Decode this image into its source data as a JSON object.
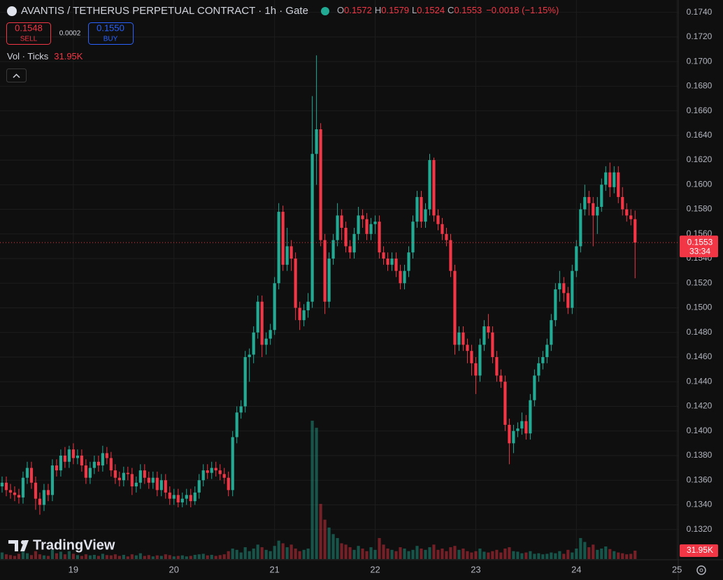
{
  "chart_data": {
    "type": "candlestick",
    "title": "AVANTIS / TETHERUS PERPETUAL CONTRACT · 1h · Gate",
    "legend_letters": [
      "O",
      "H",
      "L",
      "C"
    ],
    "change_label": "−0.0018 (−1.15%)",
    "sell_price": 0.1548,
    "sell_label": "SELL",
    "spread": 0.0002,
    "buy_price": {
      "value": 0.155,
      "label": "0.1550"
    },
    "buy_label": "BUY",
    "volume_indicator": "Vol · Ticks",
    "volume_label": "31.95K",
    "countdown": "33:34",
    "watermark": "TradingView",
    "up_color": "#22ab94",
    "down_color": "#f23645",
    "grid": true,
    "xlim": [
      6.5,
      168.3
    ],
    "xticks": [
      {
        "value": 24,
        "label": "19"
      },
      {
        "value": 48,
        "label": "20"
      },
      {
        "value": 72,
        "label": "21"
      },
      {
        "value": 96,
        "label": "22"
      },
      {
        "value": 120,
        "label": "23"
      },
      {
        "value": 144,
        "label": "24"
      },
      {
        "value": 168,
        "label": "25"
      }
    ],
    "ylim": [
      0.1296,
      0.175
    ],
    "yticks": [
      {
        "value": 0.132,
        "label": "0.1320"
      },
      {
        "value": 0.134,
        "label": "0.1340"
      },
      {
        "value": 0.136,
        "label": "0.1360"
      },
      {
        "value": 0.138,
        "label": "0.1380"
      },
      {
        "value": 0.14,
        "label": "0.1400"
      },
      {
        "value": 0.142,
        "label": "0.1420"
      },
      {
        "value": 0.144,
        "label": "0.1440"
      },
      {
        "value": 0.146,
        "label": "0.1460"
      },
      {
        "value": 0.148,
        "label": "0.1480"
      },
      {
        "value": 0.15,
        "label": "0.1500"
      },
      {
        "value": 0.152,
        "label": "0.1520"
      },
      {
        "value": 0.154,
        "label": "0.1540"
      },
      {
        "value": 0.156,
        "label": "0.1560"
      },
      {
        "value": 0.158,
        "label": "0.1580"
      },
      {
        "value": 0.16,
        "label": "0.1600"
      },
      {
        "value": 0.162,
        "label": "0.1620"
      },
      {
        "value": 0.164,
        "label": "0.1640"
      },
      {
        "value": 0.166,
        "label": "0.1660"
      },
      {
        "value": 0.168,
        "label": "0.1680"
      },
      {
        "value": 0.17,
        "label": "0.1700"
      },
      {
        "value": 0.172,
        "label": "0.1720"
      },
      {
        "value": 0.174,
        "label": "0.1740"
      }
    ],
    "vlim": [
      0,
      2130000
    ],
    "x": [
      7,
      8,
      9,
      10,
      11,
      12,
      13,
      14,
      15,
      16,
      17,
      18,
      19,
      20,
      21,
      22,
      23,
      24,
      25,
      26,
      27,
      28,
      29,
      30,
      31,
      32,
      33,
      34,
      35,
      36,
      37,
      38,
      39,
      40,
      41,
      42,
      43,
      44,
      45,
      46,
      47,
      48,
      49,
      50,
      51,
      52,
      53,
      54,
      55,
      56,
      57,
      58,
      59,
      60,
      61,
      62,
      63,
      64,
      65,
      66,
      67,
      68,
      69,
      70,
      71,
      72,
      73,
      74,
      75,
      76,
      77,
      78,
      79,
      80,
      81,
      82,
      83,
      84,
      85,
      86,
      87,
      88,
      89,
      90,
      91,
      92,
      93,
      94,
      95,
      96,
      97,
      98,
      99,
      100,
      101,
      102,
      103,
      104,
      105,
      106,
      107,
      108,
      109,
      110,
      111,
      112,
      113,
      114,
      115,
      116,
      117,
      118,
      119,
      120,
      121,
      122,
      123,
      124,
      125,
      126,
      127,
      128,
      129,
      130,
      131,
      132,
      133,
      134,
      135,
      136,
      137,
      138,
      139,
      140,
      141,
      142,
      143,
      144,
      145,
      146,
      147,
      148,
      149,
      150,
      151,
      152,
      153,
      154,
      155,
      156,
      157,
      158
    ],
    "open": [
      0.1355,
      0.1358,
      0.1352,
      0.135,
      0.1348,
      0.1346,
      0.1362,
      0.137,
      0.1358,
      0.1345,
      0.134,
      0.1352,
      0.1348,
      0.1372,
      0.1368,
      0.138,
      0.1375,
      0.1385,
      0.1378,
      0.138,
      0.1372,
      0.1362,
      0.137,
      0.1375,
      0.1372,
      0.1382,
      0.1378,
      0.1368,
      0.1362,
      0.136,
      0.1366,
      0.1365,
      0.1355,
      0.1358,
      0.1368,
      0.1362,
      0.1358,
      0.1362,
      0.1352,
      0.136,
      0.135,
      0.1345,
      0.1348,
      0.1342,
      0.1345,
      0.1348,
      0.1343,
      0.135,
      0.136,
      0.1368,
      0.1366,
      0.137,
      0.1368,
      0.1365,
      0.1362,
      0.1352,
      0.1395,
      0.1415,
      0.142,
      0.146,
      0.1462,
      0.148,
      0.1505,
      0.147,
      0.1475,
      0.1482,
      0.152,
      0.1578,
      0.1535,
      0.155,
      0.154,
      0.15,
      0.149,
      0.1498,
      0.1505,
      0.1625,
      0.1645,
      0.1555,
      0.1505,
      0.154,
      0.1555,
      0.1575,
      0.1565,
      0.155,
      0.1545,
      0.156,
      0.1575,
      0.1572,
      0.156,
      0.1568,
      0.157,
      0.1545,
      0.154,
      0.1535,
      0.154,
      0.153,
      0.152,
      0.153,
      0.1545,
      0.157,
      0.159,
      0.157,
      0.158,
      0.162,
      0.1575,
      0.1568,
      0.156,
      0.1555,
      0.153,
      0.147,
      0.148,
      0.147,
      0.1465,
      0.1455,
      0.1445,
      0.147,
      0.1485,
      0.148,
      0.146,
      0.1445,
      0.144,
      0.1405,
      0.139,
      0.14,
      0.1402,
      0.1408,
      0.1398,
      0.1425,
      0.1445,
      0.1455,
      0.146,
      0.147,
      0.149,
      0.1515,
      0.152,
      0.1512,
      0.15,
      0.153,
      0.155,
      0.158,
      0.159,
      0.1585,
      0.1575,
      0.1582,
      0.16,
      0.161,
      0.1598,
      0.161,
      0.159,
      0.158,
      0.1575,
      0.1572
    ],
    "high": [
      0.1363,
      0.1363,
      0.1357,
      0.1355,
      0.1353,
      0.1367,
      0.1375,
      0.1375,
      0.1363,
      0.135,
      0.1357,
      0.1357,
      0.1377,
      0.1377,
      0.1385,
      0.1387,
      0.1388,
      0.139,
      0.1385,
      0.1385,
      0.1377,
      0.1375,
      0.138,
      0.138,
      0.1388,
      0.1387,
      0.1383,
      0.1373,
      0.1367,
      0.1371,
      0.1371,
      0.137,
      0.1363,
      0.1373,
      0.1373,
      0.1367,
      0.1367,
      0.1367,
      0.1365,
      0.1365,
      0.1355,
      0.1353,
      0.1353,
      0.135,
      0.1353,
      0.1353,
      0.1355,
      0.1365,
      0.1373,
      0.1373,
      0.1375,
      0.1375,
      0.1373,
      0.137,
      0.1367,
      0.14,
      0.142,
      0.1425,
      0.1465,
      0.1467,
      0.1485,
      0.151,
      0.151,
      0.148,
      0.1487,
      0.1525,
      0.1585,
      0.1583,
      0.1565,
      0.1555,
      0.1545,
      0.1505,
      0.1503,
      0.1512,
      0.1672,
      0.1705,
      0.165,
      0.156,
      0.1545,
      0.156,
      0.1585,
      0.158,
      0.157,
      0.1555,
      0.1565,
      0.1582,
      0.158,
      0.1577,
      0.1573,
      0.1575,
      0.1575,
      0.155,
      0.1545,
      0.1545,
      0.1545,
      0.1535,
      0.1535,
      0.155,
      0.1575,
      0.1595,
      0.1595,
      0.1585,
      0.1625,
      0.1622,
      0.158,
      0.1573,
      0.1565,
      0.156,
      0.1535,
      0.1485,
      0.1485,
      0.1475,
      0.147,
      0.146,
      0.1475,
      0.149,
      0.1495,
      0.1485,
      0.1465,
      0.145,
      0.1445,
      0.141,
      0.1405,
      0.1407,
      0.1415,
      0.1413,
      0.143,
      0.145,
      0.146,
      0.1465,
      0.1475,
      0.1495,
      0.152,
      0.153,
      0.1525,
      0.1517,
      0.1535,
      0.1555,
      0.1585,
      0.16,
      0.1595,
      0.159,
      0.159,
      0.1605,
      0.1615,
      0.1618,
      0.1615,
      0.1615,
      0.1598,
      0.1585,
      0.158,
      0.1579
    ],
    "low": [
      0.135,
      0.1347,
      0.1345,
      0.1343,
      0.1341,
      0.1341,
      0.1357,
      0.1353,
      0.1336,
      0.1332,
      0.1335,
      0.1343,
      0.1343,
      0.1363,
      0.1363,
      0.137,
      0.137,
      0.1373,
      0.1373,
      0.1367,
      0.1357,
      0.1357,
      0.1365,
      0.1367,
      0.1367,
      0.1373,
      0.1363,
      0.1357,
      0.1355,
      0.1355,
      0.136,
      0.1348,
      0.135,
      0.1353,
      0.1357,
      0.1353,
      0.1353,
      0.1347,
      0.1347,
      0.1345,
      0.134,
      0.134,
      0.1338,
      0.1338,
      0.134,
      0.1338,
      0.134,
      0.1345,
      0.1355,
      0.1361,
      0.1361,
      0.1363,
      0.136,
      0.1357,
      0.1347,
      0.1347,
      0.139,
      0.141,
      0.1415,
      0.144,
      0.1455,
      0.1475,
      0.146,
      0.1462,
      0.147,
      0.1478,
      0.1515,
      0.153,
      0.153,
      0.153,
      0.149,
      0.1482,
      0.1485,
      0.1492,
      0.15,
      0.16,
      0.155,
      0.1495,
      0.15,
      0.1535,
      0.155,
      0.1555,
      0.1545,
      0.154,
      0.154,
      0.1555,
      0.1565,
      0.1555,
      0.1555,
      0.156,
      0.154,
      0.1535,
      0.153,
      0.153,
      0.1525,
      0.1515,
      0.1515,
      0.1525,
      0.154,
      0.1565,
      0.1565,
      0.1565,
      0.1575,
      0.157,
      0.1563,
      0.1555,
      0.155,
      0.1525,
      0.1462,
      0.1465,
      0.1465,
      0.1455,
      0.1445,
      0.143,
      0.144,
      0.1465,
      0.1475,
      0.1455,
      0.144,
      0.1435,
      0.14,
      0.1373,
      0.1382,
      0.1395,
      0.1397,
      0.1393,
      0.1393,
      0.142,
      0.144,
      0.145,
      0.1455,
      0.1465,
      0.1485,
      0.1505,
      0.1505,
      0.1495,
      0.1495,
      0.1525,
      0.1545,
      0.1575,
      0.1575,
      0.155,
      0.156,
      0.1578,
      0.1595,
      0.159,
      0.1593,
      0.1585,
      0.1575,
      0.157,
      0.1567,
      0.1524
    ],
    "close": [
      0.1358,
      0.1352,
      0.135,
      0.1348,
      0.1346,
      0.1362,
      0.137,
      0.1358,
      0.1345,
      0.134,
      0.1352,
      0.1348,
      0.1372,
      0.1368,
      0.138,
      0.1375,
      0.1385,
      0.1378,
      0.138,
      0.1372,
      0.1362,
      0.137,
      0.1375,
      0.1372,
      0.1382,
      0.1378,
      0.1368,
      0.1362,
      0.136,
      0.1366,
      0.1365,
      0.1355,
      0.1358,
      0.1368,
      0.1362,
      0.1358,
      0.1362,
      0.1352,
      0.136,
      0.135,
      0.1345,
      0.1348,
      0.1342,
      0.1345,
      0.1348,
      0.1343,
      0.135,
      0.136,
      0.1368,
      0.1366,
      0.137,
      0.1368,
      0.1365,
      0.1362,
      0.1352,
      0.1395,
      0.1415,
      0.142,
      0.146,
      0.1462,
      0.148,
      0.1505,
      0.147,
      0.1475,
      0.1482,
      0.152,
      0.1578,
      0.1535,
      0.155,
      0.154,
      0.15,
      0.149,
      0.1498,
      0.1505,
      0.1625,
      0.1645,
      0.1555,
      0.1505,
      0.154,
      0.1555,
      0.1575,
      0.1565,
      0.155,
      0.1545,
      0.156,
      0.1575,
      0.1572,
      0.156,
      0.1568,
      0.157,
      0.1545,
      0.154,
      0.1535,
      0.154,
      0.153,
      0.152,
      0.153,
      0.1545,
      0.157,
      0.159,
      0.157,
      0.158,
      0.162,
      0.1575,
      0.1568,
      0.156,
      0.1555,
      0.153,
      0.147,
      0.148,
      0.147,
      0.1465,
      0.1455,
      0.1445,
      0.147,
      0.1485,
      0.148,
      0.146,
      0.1445,
      0.144,
      0.1405,
      0.139,
      0.14,
      0.1402,
      0.1408,
      0.1398,
      0.1425,
      0.1445,
      0.1455,
      0.146,
      0.147,
      0.149,
      0.1515,
      0.152,
      0.1512,
      0.15,
      0.153,
      0.155,
      0.158,
      0.159,
      0.1585,
      0.1575,
      0.1582,
      0.16,
      0.161,
      0.1598,
      0.161,
      0.159,
      0.158,
      0.1575,
      0.1572,
      0.1553
    ],
    "volume": [
      25000,
      18000,
      15000,
      12000,
      20000,
      28000,
      22000,
      15000,
      30000,
      18000,
      14000,
      12000,
      35000,
      22000,
      28000,
      18000,
      30000,
      20000,
      15000,
      12000,
      18000,
      14000,
      16000,
      12000,
      20000,
      15000,
      14000,
      18000,
      12000,
      16000,
      10000,
      18000,
      14000,
      22000,
      12000,
      15000,
      10000,
      14000,
      12000,
      18000,
      15000,
      10000,
      12000,
      14000,
      10000,
      12000,
      16000,
      18000,
      20000,
      14000,
      16000,
      12000,
      15000,
      18000,
      30000,
      40000,
      35000,
      25000,
      45000,
      30000,
      40000,
      55000,
      45000,
      35000,
      30000,
      50000,
      70000,
      60000,
      45000,
      55000,
      40000,
      30000,
      35000,
      40000,
      527000,
      500000,
      210000,
      150000,
      120000,
      95000,
      80000,
      60000,
      55000,
      45000,
      35000,
      50000,
      40000,
      30000,
      45000,
      35000,
      80000,
      55000,
      40000,
      35000,
      30000,
      45000,
      40000,
      30000,
      35000,
      50000,
      40000,
      35000,
      45000,
      55000,
      35000,
      40000,
      30000,
      45000,
      50000,
      35000,
      40000,
      30000,
      25000,
      30000,
      40000,
      28000,
      25000,
      30000,
      35000,
      25000,
      40000,
      45000,
      30000,
      28000,
      22000,
      25000,
      30000,
      20000,
      22000,
      18000,
      20000,
      25000,
      22000,
      30000,
      20000,
      35000,
      25000,
      40000,
      80000,
      65000,
      45000,
      55000,
      35000,
      40000,
      48000,
      38000,
      30000,
      25000,
      22000,
      18000,
      20000,
      31950
    ]
  }
}
